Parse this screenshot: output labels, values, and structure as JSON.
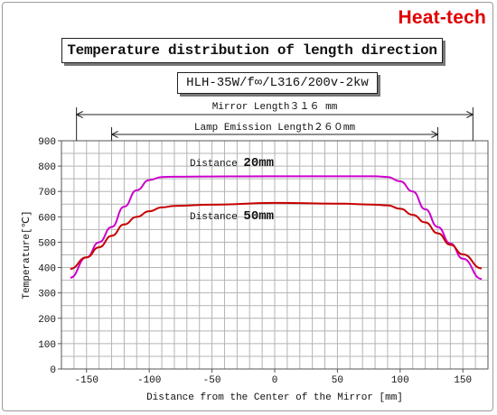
{
  "brand": "Heat-tech",
  "title": "Temperature distribution of length direction",
  "model": "HLH-35W/f∞/L316/200v-2kw",
  "dimensions": {
    "mirror_length_label": "Mirror Length３１６ mm",
    "lamp_length_label": "Lamp Emission Length２６０mm",
    "mirror_range": [
      -158,
      158
    ],
    "lamp_range": [
      -130,
      130
    ]
  },
  "colors": {
    "series_20mm": "#cc00cc",
    "series_50mm": "#c80000",
    "grid": "#b4b4b4"
  },
  "chart_data": {
    "type": "line",
    "xlabel": "Distance from the Center of the Mirror [mm]",
    "ylabel": "Temperature[℃]",
    "xlim": [
      -170,
      170
    ],
    "ylim": [
      0,
      900
    ],
    "xticks": [
      -150,
      -100,
      -50,
      0,
      50,
      100,
      150
    ],
    "yticks": [
      0,
      100,
      200,
      300,
      400,
      500,
      600,
      700,
      800,
      900
    ],
    "grid": true,
    "series": [
      {
        "name": "Distance 20mm",
        "label_prefix": "Distance ",
        "label_value": "20mm",
        "x": [
          -163,
          -150,
          -140,
          -130,
          -120,
          -110,
          -100,
          -90,
          -80,
          -50,
          0,
          50,
          80,
          90,
          100,
          110,
          120,
          130,
          140,
          150,
          165
        ],
        "y": [
          360,
          440,
          500,
          560,
          640,
          705,
          745,
          757,
          758,
          759,
          760,
          760,
          760,
          757,
          740,
          700,
          630,
          560,
          495,
          435,
          355
        ]
      },
      {
        "name": "Distance 50mm",
        "label_prefix": "Distance ",
        "label_value": "50mm",
        "x": [
          -163,
          -150,
          -140,
          -130,
          -120,
          -110,
          -100,
          -90,
          -80,
          -50,
          0,
          50,
          80,
          90,
          100,
          110,
          120,
          130,
          140,
          150,
          165
        ],
        "y": [
          395,
          440,
          480,
          525,
          570,
          600,
          622,
          637,
          643,
          648,
          655,
          652,
          648,
          645,
          632,
          608,
          578,
          535,
          490,
          452,
          397
        ]
      }
    ]
  }
}
